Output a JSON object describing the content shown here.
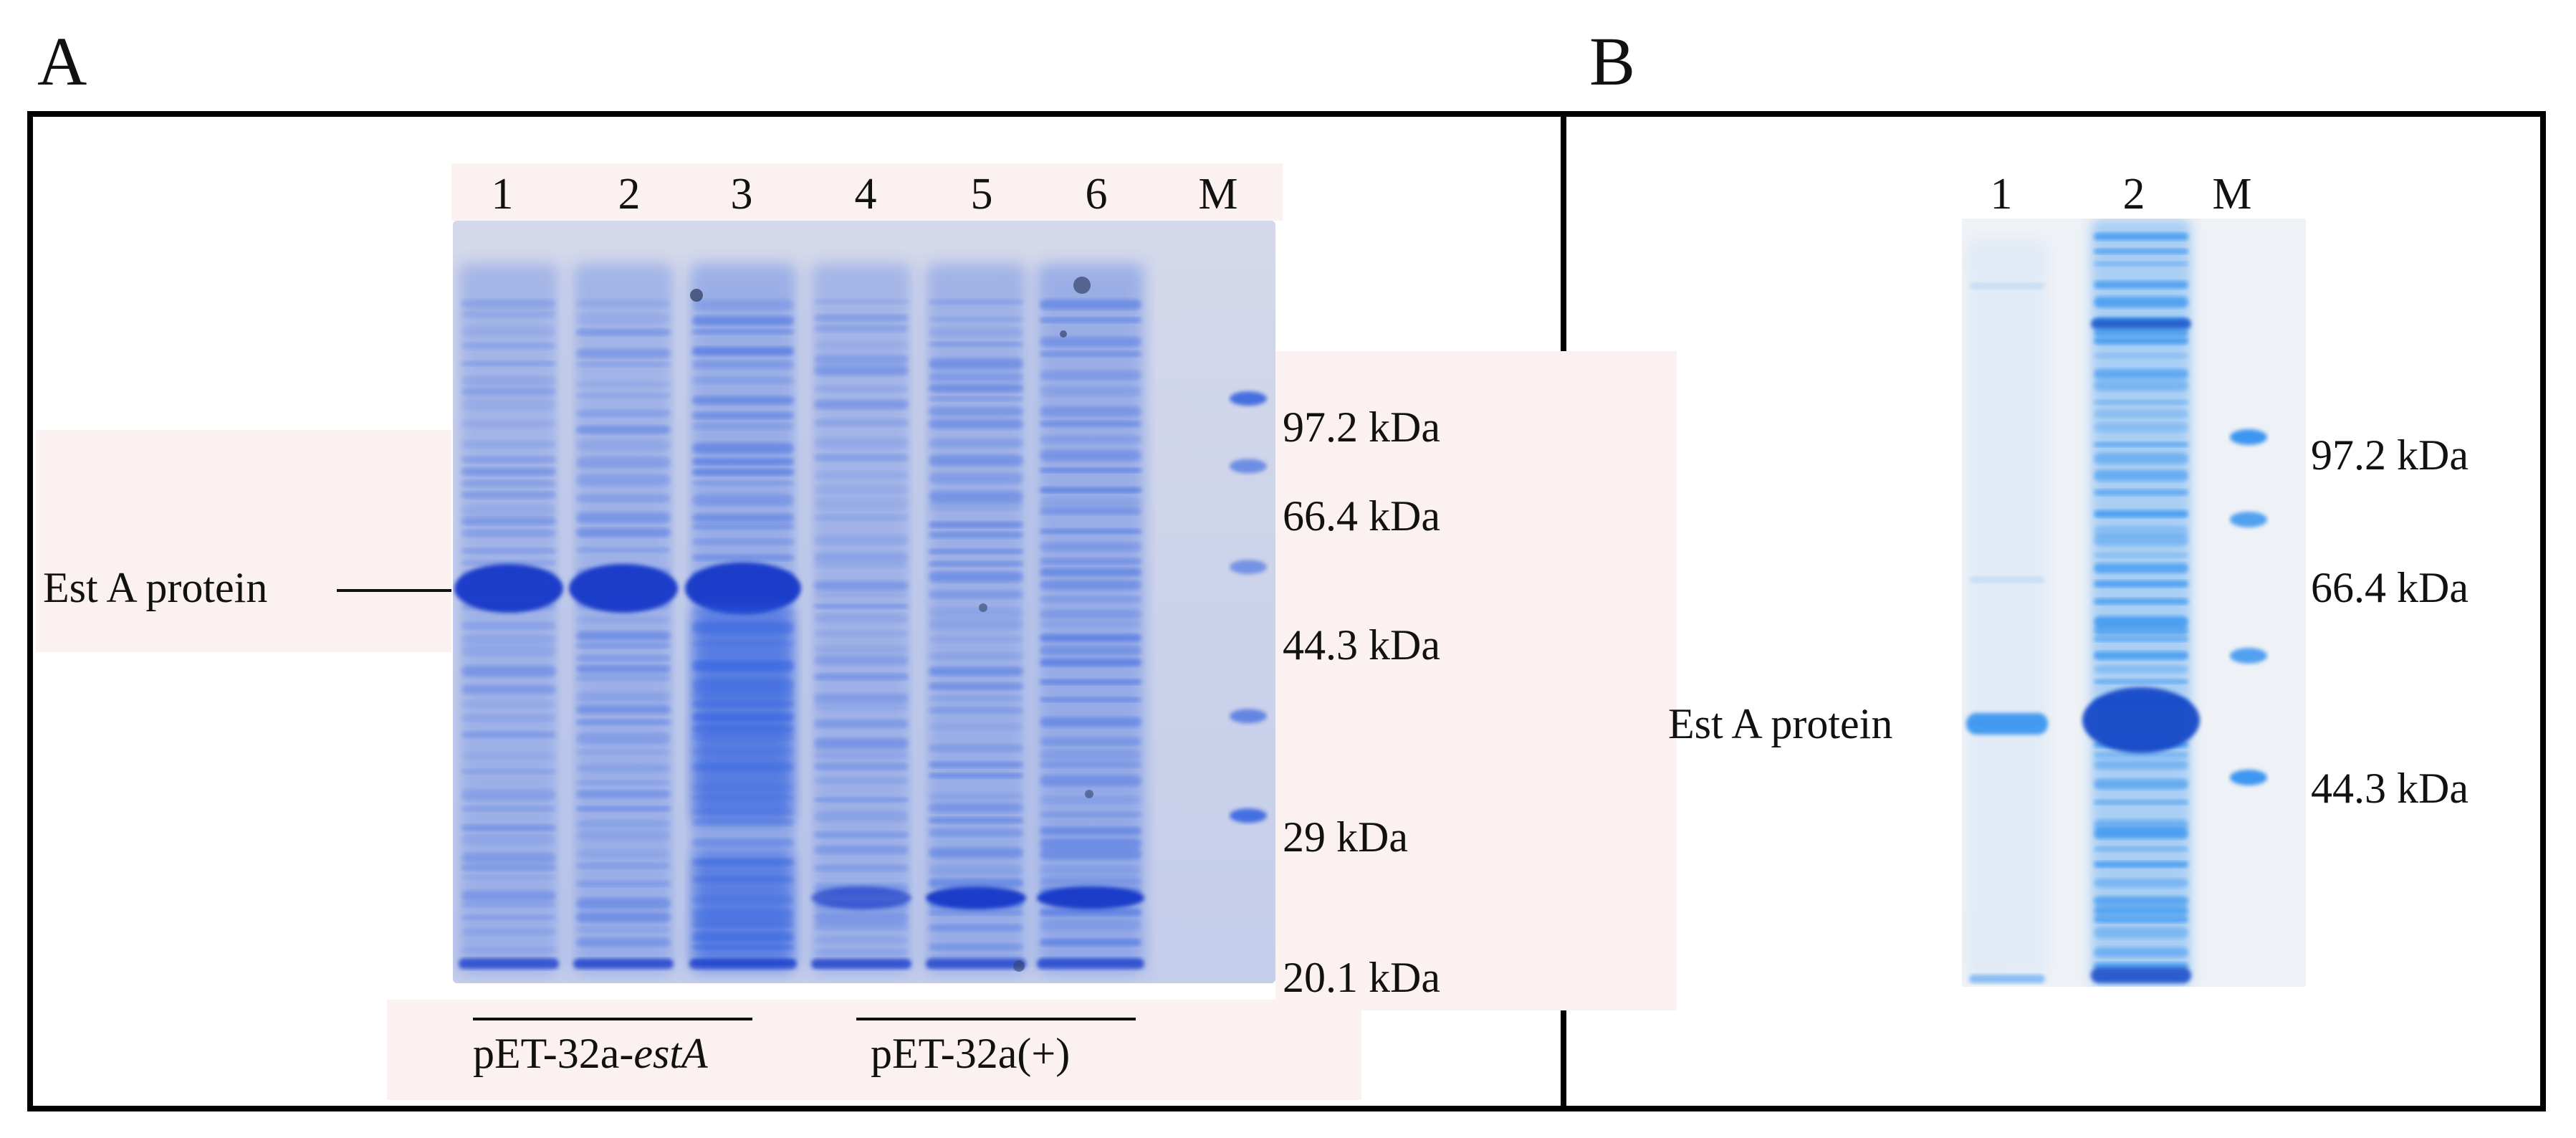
{
  "panels": [
    {
      "letter": "A",
      "lanes": [
        "1",
        "2",
        "3",
        "4",
        "5",
        "6",
        "M"
      ],
      "markers": [
        "97.2 kDa",
        "66.4 kDa",
        "44.3 kDa",
        "29 kDa",
        "20.1 kDa"
      ],
      "pointer_label": "Est A protein",
      "groups": [
        {
          "prefix": "pET-32a-",
          "italic": "estA",
          "suffix": ""
        },
        {
          "prefix": "pET-32a(+)",
          "italic": "",
          "suffix": ""
        }
      ]
    },
    {
      "letter": "B",
      "lanes": [
        "1",
        "2",
        "M"
      ],
      "markers": [
        "97.2 kDa",
        "66.4 kDa",
        "44.3 kDa"
      ],
      "pointer_label": "Est A protein"
    }
  ],
  "colors": {
    "gel_background": "#c9d2ec",
    "stain_blue": "#2f5fe0",
    "stain_dark": "#1838c8",
    "gel_b_background": "#eef2f8",
    "gel_b_stain": "#2b8ef0"
  }
}
